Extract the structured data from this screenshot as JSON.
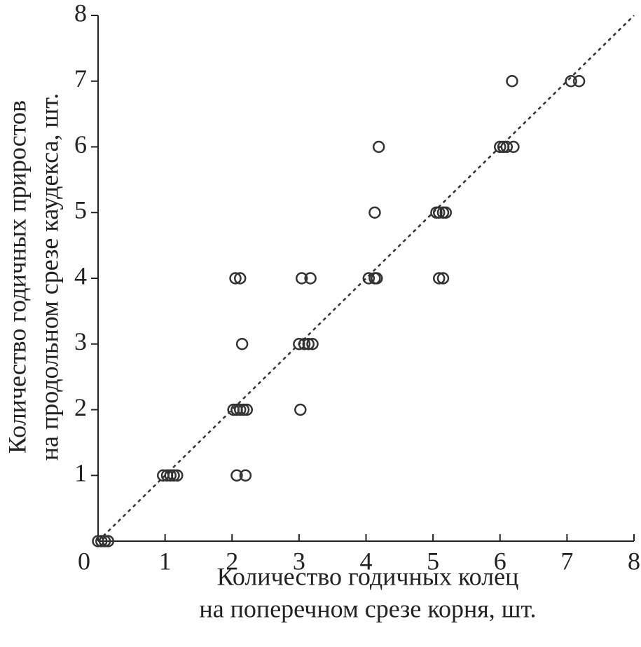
{
  "chart_data": {
    "type": "scatter",
    "xlabel": [
      "Количество годичных колец",
      "на поперечном срезе корня, шт."
    ],
    "ylabel": [
      "Количество годичных приростов",
      "на продольном срезе каудекса, шт."
    ],
    "x": [
      0,
      0.05,
      0.1,
      0.15,
      0.97,
      1.03,
      1.08,
      1.13,
      1.18,
      2.07,
      2.2,
      2.02,
      2.07,
      2.12,
      2.17,
      2.22,
      3.02,
      2.15,
      3.0,
      3.08,
      3.14,
      3.2,
      2.05,
      2.12,
      3.04,
      3.17,
      4.04,
      4.13,
      4.16,
      5.09,
      5.15,
      4.13,
      5.05,
      5.09,
      5.15,
      5.19,
      4.19,
      6.0,
      6.05,
      6.1,
      6.2,
      6.18,
      7.06,
      7.18
    ],
    "y": [
      0,
      0,
      0,
      0,
      1,
      1,
      1,
      1,
      1,
      1,
      1,
      2,
      2,
      2,
      2,
      2,
      2,
      3,
      3,
      3,
      3,
      3,
      4,
      4,
      4,
      4,
      4,
      4,
      4,
      4,
      4,
      5,
      5,
      5,
      5,
      5,
      6,
      6,
      6,
      6,
      6,
      7,
      7,
      7
    ],
    "color": "#333333",
    "identity_line": true,
    "xlim": [
      0,
      8
    ],
    "ylim": [
      0,
      8
    ],
    "xticks": [
      0,
      1,
      2,
      3,
      4,
      5,
      6,
      7,
      8
    ],
    "yticks": [
      1,
      2,
      3,
      4,
      5,
      6,
      7,
      8
    ]
  }
}
